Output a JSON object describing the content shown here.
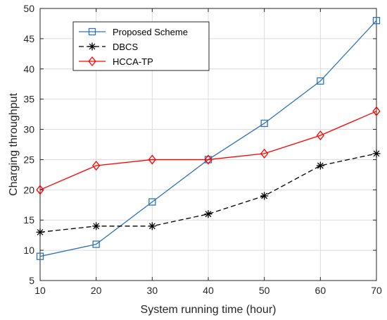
{
  "chart_data": {
    "type": "line",
    "xlabel": "System running time (hour)",
    "ylabel": "Charging throughput",
    "xlim": [
      10,
      70
    ],
    "ylim": [
      5,
      50
    ],
    "xticks": [
      10,
      20,
      30,
      40,
      50,
      60,
      70
    ],
    "yticks": [
      5,
      10,
      15,
      20,
      25,
      30,
      35,
      40,
      45,
      50
    ],
    "x": [
      10,
      20,
      30,
      40,
      50,
      60,
      70
    ],
    "grid": true,
    "legend_position": "top-left",
    "series": [
      {
        "name": "Proposed Scheme",
        "values": [
          9,
          11,
          18,
          25,
          31,
          38,
          48
        ],
        "color": "#2e74b5",
        "marker": "square",
        "line_style": "solid"
      },
      {
        "name": "DBCS",
        "values": [
          13,
          14,
          14,
          16,
          19,
          24,
          26
        ],
        "color": "#000000",
        "marker": "asterisk",
        "line_style": "dashed"
      },
      {
        "name": "HCCA-TP",
        "values": [
          20,
          24,
          25,
          25,
          26,
          29,
          33
        ],
        "color": "#ff0000",
        "marker": "diamond",
        "line_style": "solid"
      }
    ]
  }
}
